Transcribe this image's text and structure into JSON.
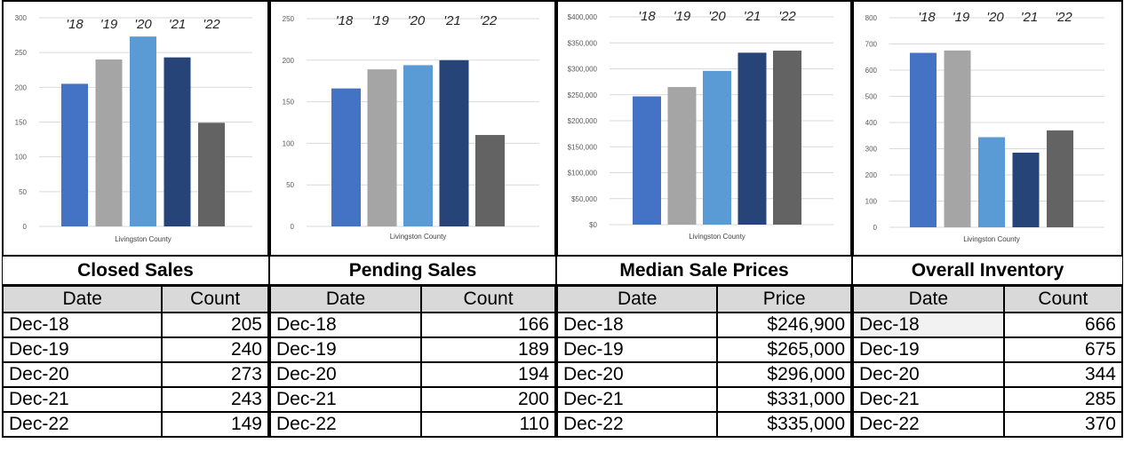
{
  "chart_data": [
    {
      "type": "bar",
      "title": "Closed Sales",
      "xlabel": "Livingston County",
      "categories": [
        "'18",
        "'19",
        "'20",
        "'21",
        "'22"
      ],
      "values": [
        205,
        240,
        273,
        243,
        149
      ],
      "ylim": [
        0,
        300
      ],
      "yticks": [
        0,
        50,
        100,
        150,
        200,
        250,
        300
      ],
      "ytick_labels": [
        "0",
        "50",
        "100",
        "150",
        "200",
        "250",
        "300"
      ],
      "grid": true,
      "colors": [
        "#4472c4",
        "#a5a5a5",
        "#5b9bd5",
        "#264478",
        "#636363"
      ]
    },
    {
      "type": "bar",
      "title": "Pending Sales",
      "xlabel": "Livingston County",
      "categories": [
        "'18",
        "'19",
        "'20",
        "'21",
        "'22"
      ],
      "values": [
        166,
        189,
        194,
        200,
        110
      ],
      "ylim": [
        0,
        250
      ],
      "yticks": [
        0,
        50,
        100,
        150,
        200,
        250
      ],
      "ytick_labels": [
        "0",
        "50",
        "100",
        "150",
        "200",
        "250"
      ],
      "grid": true,
      "colors": [
        "#4472c4",
        "#a5a5a5",
        "#5b9bd5",
        "#264478",
        "#636363"
      ]
    },
    {
      "type": "bar",
      "title": "Median Sale Prices",
      "xlabel": "Livingston County",
      "categories": [
        "'18",
        "'19",
        "'20",
        "'21",
        "'22"
      ],
      "values": [
        246900,
        265000,
        296000,
        331000,
        335000
      ],
      "ylim": [
        0,
        400000
      ],
      "yticks": [
        0,
        50000,
        100000,
        150000,
        200000,
        250000,
        300000,
        350000,
        400000
      ],
      "ytick_labels": [
        "$0",
        "$50,000",
        "$100,000",
        "$150,000",
        "$200,000",
        "$250,000",
        "$300,000",
        "$350,000",
        "$400,000"
      ],
      "grid": true,
      "colors": [
        "#4472c4",
        "#a5a5a5",
        "#5b9bd5",
        "#264478",
        "#636363"
      ]
    },
    {
      "type": "bar",
      "title": "Overall Inventory",
      "xlabel": "Livingston County",
      "categories": [
        "'18",
        "'19",
        "'20",
        "'21",
        "'22"
      ],
      "values": [
        666,
        675,
        344,
        285,
        370
      ],
      "ylim": [
        0,
        800
      ],
      "yticks": [
        0,
        100,
        200,
        300,
        400,
        500,
        600,
        700,
        800
      ],
      "ytick_labels": [
        "0",
        "100",
        "200",
        "300",
        "400",
        "500",
        "600",
        "700",
        "800"
      ],
      "grid": true,
      "colors": [
        "#4472c4",
        "#a5a5a5",
        "#5b9bd5",
        "#264478",
        "#636363"
      ]
    }
  ],
  "tables": [
    {
      "title": "Closed Sales",
      "headers": [
        "Date",
        "Count"
      ],
      "rows": [
        [
          "Dec-18",
          "205"
        ],
        [
          "Dec-19",
          "240"
        ],
        [
          "Dec-20",
          "273"
        ],
        [
          "Dec-21",
          "243"
        ],
        [
          "Dec-22",
          "149"
        ]
      ]
    },
    {
      "title": "Pending Sales",
      "headers": [
        "Date",
        "Count"
      ],
      "rows": [
        [
          "Dec-18",
          "166"
        ],
        [
          "Dec-19",
          "189"
        ],
        [
          "Dec-20",
          "194"
        ],
        [
          "Dec-21",
          "200"
        ],
        [
          "Dec-22",
          "110"
        ]
      ]
    },
    {
      "title": "Median Sale Prices",
      "headers": [
        "Date",
        "Price"
      ],
      "rows": [
        [
          "Dec-18",
          "$246,900"
        ],
        [
          "Dec-19",
          "$265,000"
        ],
        [
          "Dec-20",
          "$296,000"
        ],
        [
          "Dec-21",
          "$331,000"
        ],
        [
          "Dec-22",
          "$335,000"
        ]
      ]
    },
    {
      "title": "Overall Inventory",
      "headers": [
        "Date",
        "Count"
      ],
      "rows": [
        [
          "Dec-18",
          "666"
        ],
        [
          "Dec-19",
          "675"
        ],
        [
          "Dec-20",
          "344"
        ],
        [
          "Dec-21",
          "285"
        ],
        [
          "Dec-22",
          "370"
        ]
      ]
    }
  ]
}
